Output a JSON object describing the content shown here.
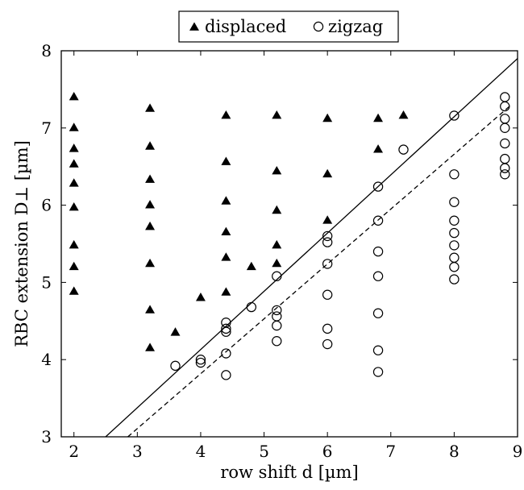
{
  "chart_data": {
    "type": "scatter",
    "xlabel": "row shift d [µm]",
    "ylabel": "RBC extension D⊥ [µm]",
    "xlim": [
      1.8,
      9.0
    ],
    "ylim": [
      3,
      8
    ],
    "x_ticks": [
      "2",
      "3",
      "4",
      "5",
      "6",
      "7",
      "8",
      "9"
    ],
    "y_ticks": [
      "3",
      "4",
      "5",
      "6",
      "7",
      "8"
    ],
    "legend_position": "top-center",
    "grid": false,
    "series": [
      {
        "name": "displaced",
        "marker": "filled-triangle",
        "color": "#000000",
        "points": [
          [
            2.0,
            7.4
          ],
          [
            2.0,
            7.0
          ],
          [
            2.0,
            6.73
          ],
          [
            2.0,
            6.53
          ],
          [
            2.0,
            6.28
          ],
          [
            2.0,
            5.97
          ],
          [
            2.0,
            5.48
          ],
          [
            2.0,
            5.2
          ],
          [
            2.0,
            4.88
          ],
          [
            3.2,
            7.25
          ],
          [
            3.2,
            6.76
          ],
          [
            3.2,
            6.33
          ],
          [
            3.2,
            6.0
          ],
          [
            3.2,
            5.72
          ],
          [
            3.2,
            5.24
          ],
          [
            3.2,
            4.64
          ],
          [
            3.2,
            4.15
          ],
          [
            3.6,
            4.35
          ],
          [
            4.0,
            4.8
          ],
          [
            4.4,
            7.16
          ],
          [
            4.4,
            6.56
          ],
          [
            4.4,
            6.05
          ],
          [
            4.4,
            5.65
          ],
          [
            4.4,
            5.32
          ],
          [
            4.4,
            4.87
          ],
          [
            4.8,
            5.2
          ],
          [
            5.2,
            7.16
          ],
          [
            5.2,
            6.44
          ],
          [
            5.2,
            5.93
          ],
          [
            5.2,
            5.48
          ],
          [
            5.2,
            5.24
          ],
          [
            6.0,
            7.12
          ],
          [
            6.0,
            6.4
          ],
          [
            6.0,
            5.8
          ],
          [
            6.8,
            7.12
          ],
          [
            6.8,
            6.72
          ],
          [
            7.2,
            7.16
          ]
        ]
      },
      {
        "name": "zigzag",
        "marker": "open-circle",
        "color": "#000000",
        "points": [
          [
            3.6,
            3.92
          ],
          [
            4.0,
            4.0
          ],
          [
            4.0,
            3.96
          ],
          [
            4.4,
            4.48
          ],
          [
            4.4,
            4.4
          ],
          [
            4.4,
            4.36
          ],
          [
            4.4,
            4.08
          ],
          [
            4.4,
            3.8
          ],
          [
            4.8,
            4.68
          ],
          [
            5.2,
            5.08
          ],
          [
            5.2,
            4.64
          ],
          [
            5.2,
            4.56
          ],
          [
            5.2,
            4.44
          ],
          [
            5.2,
            4.24
          ],
          [
            6.0,
            5.6
          ],
          [
            6.0,
            5.52
          ],
          [
            6.0,
            5.24
          ],
          [
            6.0,
            4.84
          ],
          [
            6.0,
            4.4
          ],
          [
            6.0,
            4.2
          ],
          [
            6.8,
            6.24
          ],
          [
            6.8,
            5.8
          ],
          [
            6.8,
            5.4
          ],
          [
            6.8,
            5.08
          ],
          [
            6.8,
            4.6
          ],
          [
            6.8,
            4.12
          ],
          [
            6.8,
            3.84
          ],
          [
            7.2,
            6.72
          ],
          [
            8.0,
            7.16
          ],
          [
            8.0,
            6.4
          ],
          [
            8.0,
            6.04
          ],
          [
            8.0,
            5.8
          ],
          [
            8.0,
            5.64
          ],
          [
            8.0,
            5.48
          ],
          [
            8.0,
            5.32
          ],
          [
            8.0,
            5.2
          ],
          [
            8.0,
            5.04
          ],
          [
            8.8,
            7.4
          ],
          [
            8.8,
            7.28
          ],
          [
            8.8,
            7.12
          ],
          [
            8.8,
            7.0
          ],
          [
            8.8,
            6.8
          ],
          [
            8.8,
            6.6
          ],
          [
            8.8,
            6.48
          ],
          [
            8.8,
            6.4
          ]
        ]
      }
    ],
    "lines": [
      {
        "style": "solid",
        "from": [
          2.5,
          3.0
        ],
        "to": [
          9.0,
          7.9
        ]
      },
      {
        "style": "dashed",
        "from": [
          2.85,
          3.0
        ],
        "to": [
          8.9,
          7.3
        ]
      }
    ]
  }
}
